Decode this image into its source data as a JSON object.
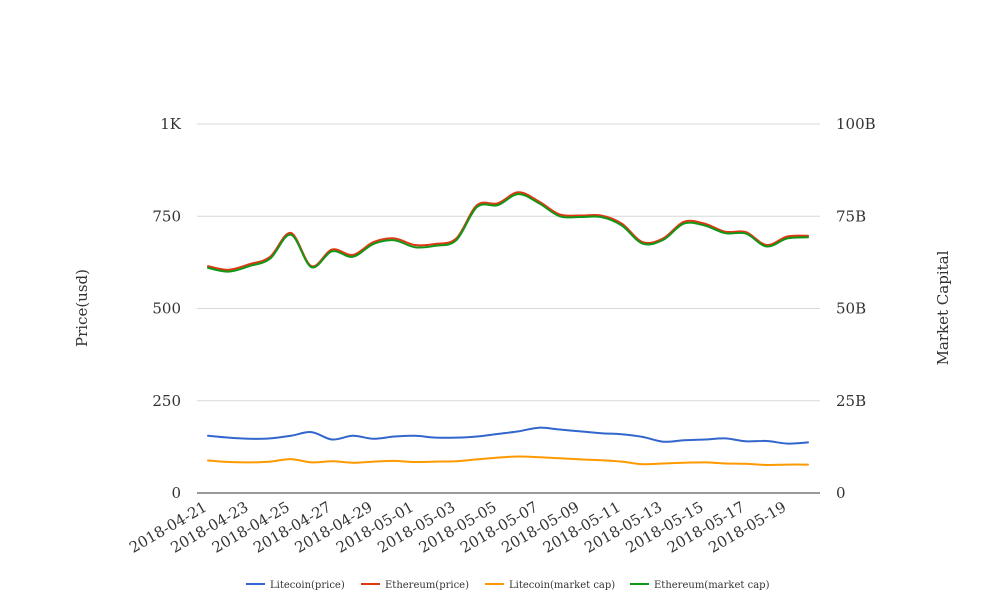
{
  "chart_data": {
    "type": "line",
    "xlabel": "",
    "ylabel": "Price(usd)",
    "y2label": "Market Capital",
    "ylim": [
      0,
      1000
    ],
    "y2lim": [
      0,
      100000000000
    ],
    "yticks": [
      0,
      250,
      500,
      750,
      1000
    ],
    "ytick_labels": [
      "0",
      "250",
      "500",
      "750",
      "1K"
    ],
    "y2tick_labels": [
      "0",
      "25B",
      "50B",
      "75B",
      "100B"
    ],
    "grid": true,
    "legend": "bottom",
    "x": [
      "2018-04-21",
      "2018-04-22",
      "2018-04-23",
      "2018-04-24",
      "2018-04-25",
      "2018-04-26",
      "2018-04-27",
      "2018-04-28",
      "2018-04-29",
      "2018-04-30",
      "2018-05-01",
      "2018-05-02",
      "2018-05-03",
      "2018-05-04",
      "2018-05-05",
      "2018-05-06",
      "2018-05-07",
      "2018-05-08",
      "2018-05-09",
      "2018-05-10",
      "2018-05-11",
      "2018-05-12",
      "2018-05-13",
      "2018-05-14",
      "2018-05-15",
      "2018-05-16",
      "2018-05-17",
      "2018-05-18",
      "2018-05-19",
      "2018-05-20"
    ],
    "xtick_labels": [
      "2018-04-21",
      "2018-04-23",
      "2018-04-25",
      "2018-04-27",
      "2018-04-29",
      "2018-05-01",
      "2018-05-03",
      "2018-05-05",
      "2018-05-07",
      "2018-05-09",
      "2018-05-11",
      "2018-05-13",
      "2018-05-15",
      "2018-05-17",
      "2018-05-19"
    ],
    "series": [
      {
        "name": "Litecoin(price)",
        "axis": "left",
        "color": "#3366cc",
        "values": [
          155,
          150,
          147,
          148,
          155,
          165,
          145,
          155,
          147,
          153,
          155,
          150,
          150,
          153,
          160,
          167,
          177,
          172,
          167,
          162,
          159,
          152,
          139,
          143,
          145,
          148,
          140,
          141,
          134,
          137
        ]
      },
      {
        "name": "Ethereum(price)",
        "axis": "left",
        "color": "#dc3912",
        "values": [
          615,
          605,
          620,
          640,
          705,
          615,
          660,
          645,
          680,
          690,
          672,
          675,
          690,
          780,
          785,
          815,
          790,
          755,
          752,
          752,
          730,
          680,
          690,
          735,
          730,
          708,
          707,
          672,
          695,
          697
        ]
      },
      {
        "name": "Litecoin(market cap)",
        "axis": "right",
        "color": "#ff9900",
        "values": [
          8800000000,
          8400000000,
          8300000000,
          8500000000,
          9200000000,
          8300000000,
          8600000000,
          8200000000,
          8500000000,
          8700000000,
          8400000000,
          8500000000,
          8600000000,
          9100000000,
          9600000000,
          9900000000,
          9700000000,
          9400000000,
          9100000000,
          8900000000,
          8500000000,
          7800000000,
          8000000000,
          8200000000,
          8300000000,
          8000000000,
          7900000000,
          7600000000,
          7700000000,
          7700000000
        ]
      },
      {
        "name": "Ethereum(market cap)",
        "axis": "right",
        "color": "#109618",
        "values": [
          61000000000,
          60000000000,
          61500000000,
          63500000000,
          70000000000,
          61200000000,
          65500000000,
          64000000000,
          67500000000,
          68500000000,
          66600000000,
          67000000000,
          68500000000,
          77500000000,
          78000000000,
          81000000000,
          78500000000,
          75000000000,
          74800000000,
          74800000000,
          72500000000,
          67600000000,
          68600000000,
          73000000000,
          72500000000,
          70400000000,
          70300000000,
          66800000000,
          69000000000,
          69300000000
        ]
      }
    ]
  }
}
